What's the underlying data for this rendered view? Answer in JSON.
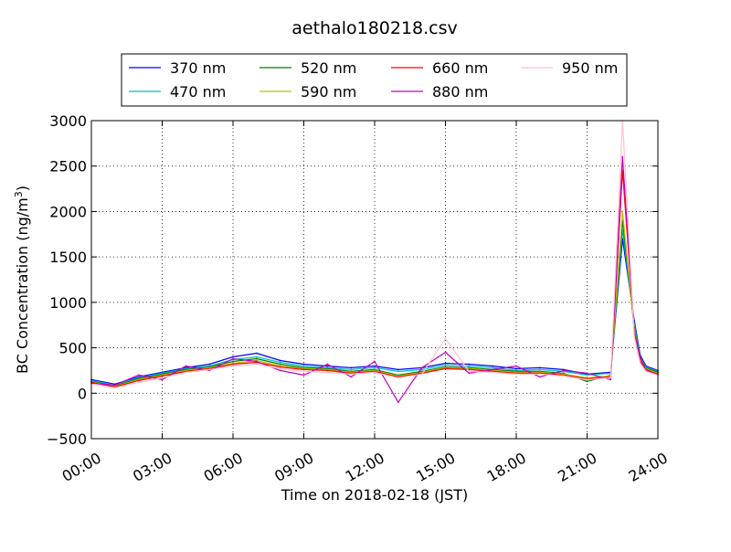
{
  "chart_data": {
    "type": "line",
    "title": "aethalo180218.csv",
    "xlabel": "Time on 2018-02-18 (JST)",
    "ylabel": "BC Concentration (ng/m",
    "ylabel_sup": "3",
    "ylabel_end": ")",
    "xlim": [
      "00:00",
      "24:00"
    ],
    "ylim": [
      -500,
      3000
    ],
    "grid": true,
    "legend_position": "top-center",
    "x_ticks": [
      "00:00",
      "03:00",
      "06:00",
      "09:00",
      "12:00",
      "15:00",
      "18:00",
      "21:00",
      "24:00"
    ],
    "y_ticks": [
      "3000",
      "2500",
      "2000",
      "1500",
      "1000",
      "500",
      "0",
      "−500"
    ],
    "y_tick_values": [
      3000,
      2500,
      2000,
      1500,
      1000,
      500,
      0,
      -500
    ],
    "x": [
      "00:00",
      "01:00",
      "02:00",
      "03:00",
      "04:00",
      "05:00",
      "06:00",
      "07:00",
      "08:00",
      "09:00",
      "10:00",
      "11:00",
      "12:00",
      "13:00",
      "14:00",
      "15:00",
      "16:00",
      "17:00",
      "18:00",
      "19:00",
      "20:00",
      "21:00",
      "22:00",
      "22:30",
      "23:00",
      "23:15",
      "23:30",
      "24:00"
    ],
    "series": [
      {
        "name": "370 nm",
        "color": "#0000ff",
        "values": [
          150,
          100,
          180,
          230,
          280,
          320,
          400,
          440,
          360,
          320,
          300,
          280,
          300,
          260,
          280,
          330,
          320,
          300,
          270,
          280,
          260,
          210,
          230,
          1700,
          800,
          420,
          300,
          250
        ]
      },
      {
        "name": "470 nm",
        "color": "#00bfbf",
        "values": [
          140,
          90,
          170,
          220,
          270,
          300,
          370,
          400,
          340,
          300,
          280,
          260,
          280,
          240,
          260,
          310,
          300,
          280,
          250,
          260,
          240,
          200,
          220,
          1800,
          760,
          400,
          290,
          240
        ]
      },
      {
        "name": "520 nm",
        "color": "#008000",
        "values": [
          130,
          80,
          160,
          210,
          260,
          290,
          350,
          380,
          320,
          280,
          270,
          240,
          260,
          200,
          240,
          290,
          280,
          260,
          240,
          240,
          220,
          130,
          200,
          1900,
          720,
          380,
          280,
          230
        ]
      },
      {
        "name": "590 nm",
        "color": "#bfbf00",
        "values": [
          125,
          75,
          150,
          200,
          250,
          280,
          330,
          360,
          300,
          270,
          260,
          230,
          250,
          190,
          230,
          280,
          270,
          250,
          230,
          230,
          210,
          170,
          190,
          2000,
          700,
          360,
          270,
          220
        ]
      },
      {
        "name": "660 nm",
        "color": "#ff0000",
        "values": [
          120,
          70,
          140,
          190,
          240,
          270,
          320,
          340,
          290,
          260,
          250,
          220,
          240,
          180,
          220,
          270,
          260,
          240,
          220,
          220,
          200,
          160,
          180,
          2450,
          680,
          350,
          260,
          210
        ]
      },
      {
        "name": "880 nm",
        "color": "#bf00bf",
        "values": [
          110,
          90,
          200,
          150,
          300,
          250,
          380,
          350,
          250,
          200,
          320,
          180,
          350,
          -100,
          280,
          450,
          220,
          260,
          300,
          180,
          250,
          220,
          150,
          2600,
          650,
          400,
          250,
          200
        ]
      },
      {
        "name": "950 nm",
        "color": "#ffc0cb",
        "values": [
          100,
          60,
          120,
          170,
          230,
          260,
          300,
          320,
          270,
          240,
          230,
          210,
          230,
          170,
          210,
          600,
          240,
          230,
          210,
          210,
          190,
          150,
          170,
          3000,
          620,
          330,
          240,
          200
        ]
      }
    ]
  }
}
